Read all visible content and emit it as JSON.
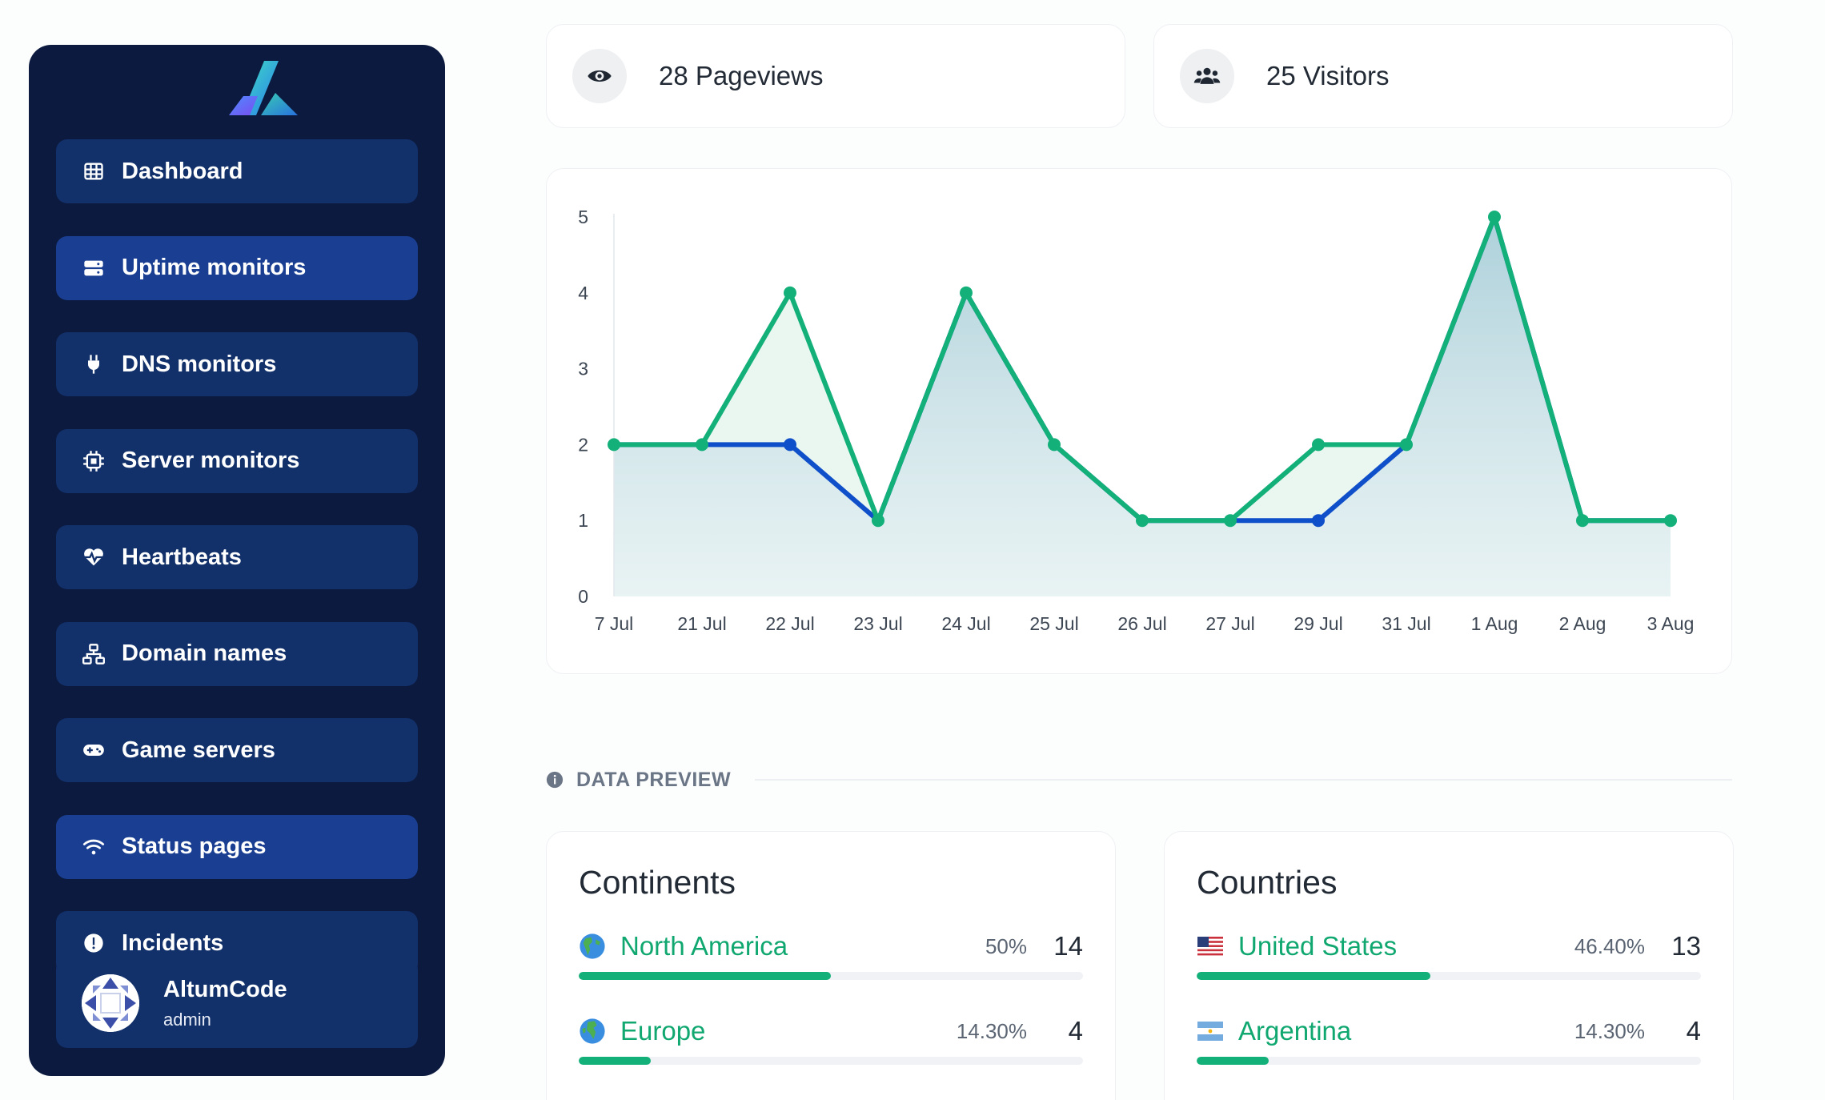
{
  "sidebar": {
    "items": [
      {
        "label": "Dashboard",
        "icon": "table-icon",
        "active": false
      },
      {
        "label": "Uptime monitors",
        "icon": "server-icon",
        "active": true
      },
      {
        "label": "DNS monitors",
        "icon": "plug-icon",
        "active": false
      },
      {
        "label": "Server monitors",
        "icon": "chip-icon",
        "active": false
      },
      {
        "label": "Heartbeats",
        "icon": "heart-pulse-icon",
        "active": false
      },
      {
        "label": "Domain names",
        "icon": "network-icon",
        "active": false
      },
      {
        "label": "Game servers",
        "icon": "gamepad-icon",
        "active": false
      },
      {
        "label": "Status pages",
        "icon": "wifi-icon",
        "active": true
      },
      {
        "label": "Incidents",
        "icon": "exclamation-icon",
        "active": false
      }
    ],
    "user": {
      "name": "AltumCode",
      "role": "admin"
    }
  },
  "stats": {
    "pageviews": "28 Pageviews",
    "visitors": "25 Visitors"
  },
  "section": {
    "title": "DATA PREVIEW"
  },
  "continents": {
    "title": "Continents",
    "rows": [
      {
        "label": "North America",
        "pct": "50%",
        "count": "14",
        "share": 0.5,
        "flag": "globe-americas-icon"
      },
      {
        "label": "Europe",
        "pct": "14.30%",
        "count": "4",
        "share": 0.143,
        "flag": "globe-europe-icon"
      }
    ]
  },
  "countries": {
    "title": "Countries",
    "rows": [
      {
        "label": "United States",
        "pct": "46.40%",
        "count": "13",
        "share": 0.464,
        "flag": "us-flag-icon"
      },
      {
        "label": "Argentina",
        "pct": "14.30%",
        "count": "4",
        "share": 0.143,
        "flag": "argentina-flag-icon"
      }
    ]
  },
  "colors": {
    "accent": "#13b07a",
    "secondary": "#0f4fc9",
    "sidebar": "#0b1a3e"
  },
  "chart_data": {
    "type": "area",
    "categories": [
      "7 Jul",
      "21 Jul",
      "22 Jul",
      "23 Jul",
      "24 Jul",
      "25 Jul",
      "26 Jul",
      "27 Jul",
      "29 Jul",
      "31 Jul",
      "1 Aug",
      "2 Aug",
      "3 Aug"
    ],
    "series": [
      {
        "values": [
          2,
          2,
          4,
          1,
          4,
          2,
          1,
          1,
          2,
          2,
          5,
          1,
          1
        ],
        "color": "#13b07a"
      },
      {
        "values": [
          2,
          2,
          2,
          1,
          4,
          2,
          1,
          1,
          1,
          2,
          5,
          1,
          1
        ],
        "color": "#0f4fc9"
      }
    ],
    "ylim": [
      0,
      5
    ],
    "yticks": [
      "0",
      "1",
      "2",
      "3",
      "4",
      "5"
    ],
    "grid": false
  }
}
